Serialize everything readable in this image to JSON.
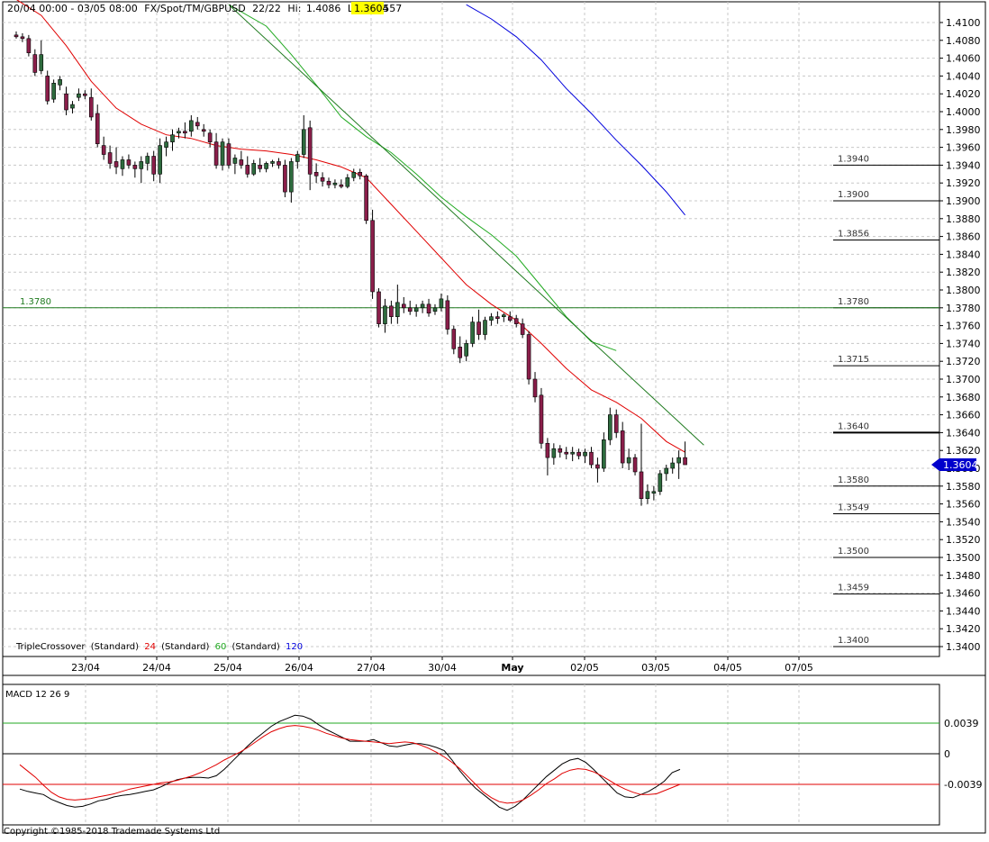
{
  "header": {
    "range": "20/04 00:00 - 03/05 08:00",
    "instrument": "FX/Spot/TM/GBPUSD",
    "bars": "22/22",
    "hi_label": "Hi:",
    "hi": "1.4086",
    "lo_label": "Lo:",
    "lo": "1.3557",
    "last": "1.3604"
  },
  "indicator_legend": {
    "name": "TripleCrossover",
    "p1_label": "(Standard)",
    "p1": "24",
    "p2_label": "(Standard)",
    "p2": "60",
    "p3_label": "(Standard)",
    "p3": "120"
  },
  "macd_panel": {
    "label": "MACD 12 26 9",
    "ticks": [
      "0.0039",
      "0",
      "-0.0039"
    ]
  },
  "copyright": "Copyright ©1985-2018 Trademade Systems Ltd",
  "colors": {
    "up": "#2e6b3e",
    "down": "#8a1e4a",
    "ma_fast": "#e00000",
    "ma_mid": "#22aa22",
    "ma_slow": "#0000dd",
    "trend": "#1e7a1e",
    "price_tag": "#0000cc",
    "hl_last": "#ffff00"
  },
  "chart_data": [
    {
      "type": "candlestick",
      "ylim": [
        1.339,
        1.411
      ],
      "y_ticks": [
        "1.4100",
        "1.4080",
        "1.4060",
        "1.4040",
        "1.4020",
        "1.4000",
        "1.3980",
        "1.3960",
        "1.3940",
        "1.3920",
        "1.3900",
        "1.3880",
        "1.3860",
        "1.3840",
        "1.3820",
        "1.3800",
        "1.3780",
        "1.3760",
        "1.3740",
        "1.3720",
        "1.3700",
        "1.3680",
        "1.3660",
        "1.3640",
        "1.3620",
        "1.3600",
        "1.3580",
        "1.3560",
        "1.3540",
        "1.3520",
        "1.3500",
        "1.3480",
        "1.3460",
        "1.3440",
        "1.3420",
        "1.3400"
      ],
      "x_labels": [
        "23/04",
        "24/04",
        "25/04",
        "26/04",
        "27/04",
        "30/04",
        "May",
        "02/05",
        "03/05",
        "04/05",
        "07/05"
      ],
      "grid": true,
      "candles": [
        [
          1.4086,
          1.409,
          1.4082,
          1.4084
        ],
        [
          1.4084,
          1.4088,
          1.4078,
          1.4082
        ],
        [
          1.4082,
          1.4086,
          1.4062,
          1.4066
        ],
        [
          1.4064,
          1.407,
          1.404,
          1.4044
        ],
        [
          1.4046,
          1.408,
          1.4042,
          1.4064
        ],
        [
          1.404,
          1.4046,
          1.4008,
          1.4012
        ],
        [
          1.4014,
          1.4036,
          1.401,
          1.4032
        ],
        [
          1.403,
          1.404,
          1.4024,
          1.4036
        ],
        [
          1.402,
          1.4028,
          1.3996,
          1.4002
        ],
        [
          1.4004,
          1.4012,
          1.3998,
          1.4008
        ],
        [
          1.4016,
          1.4026,
          1.4012,
          1.402
        ],
        [
          1.402,
          1.4024,
          1.4014,
          1.4018
        ],
        [
          1.4016,
          1.4026,
          1.399,
          1.3994
        ],
        [
          1.3998,
          1.4008,
          1.396,
          1.3964
        ],
        [
          1.3962,
          1.3972,
          1.3946,
          1.3952
        ],
        [
          1.3954,
          1.3962,
          1.3936,
          1.3942
        ],
        [
          1.3944,
          1.396,
          1.393,
          1.3938
        ],
        [
          1.3936,
          1.395,
          1.3928,
          1.3946
        ],
        [
          1.3946,
          1.3952,
          1.3936,
          1.394
        ],
        [
          1.394,
          1.3944,
          1.3926,
          1.3936
        ],
        [
          1.3936,
          1.395,
          1.392,
          1.3944
        ],
        [
          1.3942,
          1.3954,
          1.3934,
          1.395
        ],
        [
          1.395,
          1.3956,
          1.3922,
          1.393
        ],
        [
          1.393,
          1.397,
          1.392,
          1.3962
        ],
        [
          1.396,
          1.3972,
          1.395,
          1.3966
        ],
        [
          1.3966,
          1.398,
          1.3956,
          1.3974
        ],
        [
          1.3976,
          1.3982,
          1.397,
          1.3978
        ],
        [
          1.3978,
          1.3988,
          1.397,
          1.3976
        ],
        [
          1.3978,
          1.3996,
          1.3972,
          1.399
        ],
        [
          1.3988,
          1.3994,
          1.398,
          1.3984
        ],
        [
          1.398,
          1.3986,
          1.3972,
          1.3978
        ],
        [
          1.3976,
          1.398,
          1.396,
          1.3966
        ],
        [
          1.3966,
          1.3976,
          1.3936,
          1.394
        ],
        [
          1.394,
          1.397,
          1.3934,
          1.3966
        ],
        [
          1.3964,
          1.397,
          1.3936,
          1.394
        ],
        [
          1.3942,
          1.3952,
          1.393,
          1.3948
        ],
        [
          1.3946,
          1.3956,
          1.3936,
          1.394
        ],
        [
          1.394,
          1.395,
          1.3926,
          1.393
        ],
        [
          1.393,
          1.3946,
          1.3928,
          1.3942
        ],
        [
          1.394,
          1.3948,
          1.3932,
          1.3936
        ],
        [
          1.3936,
          1.3944,
          1.3932,
          1.3942
        ],
        [
          1.3942,
          1.3946,
          1.3938,
          1.3944
        ],
        [
          1.3944,
          1.3948,
          1.3936,
          1.394
        ],
        [
          1.394,
          1.3946,
          1.3904,
          1.391
        ],
        [
          1.391,
          1.3948,
          1.3898,
          1.3944
        ],
        [
          1.3944,
          1.3956,
          1.3936,
          1.3952
        ],
        [
          1.3952,
          1.3996,
          1.3948,
          1.398
        ],
        [
          1.3982,
          1.399,
          1.3912,
          1.393
        ],
        [
          1.3932,
          1.3942,
          1.392,
          1.3928
        ],
        [
          1.3926,
          1.3932,
          1.3916,
          1.3922
        ],
        [
          1.3922,
          1.3926,
          1.3914,
          1.3918
        ],
        [
          1.3918,
          1.3924,
          1.3914,
          1.392
        ],
        [
          1.3918,
          1.3924,
          1.3914,
          1.3916
        ],
        [
          1.3916,
          1.393,
          1.3914,
          1.3926
        ],
        [
          1.3926,
          1.3936,
          1.3922,
          1.3932
        ],
        [
          1.3932,
          1.3936,
          1.3924,
          1.3928
        ],
        [
          1.3928,
          1.393,
          1.3874,
          1.3878
        ],
        [
          1.3878,
          1.389,
          1.379,
          1.3798
        ],
        [
          1.3798,
          1.3802,
          1.3758,
          1.3762
        ],
        [
          1.3762,
          1.379,
          1.3752,
          1.3782
        ],
        [
          1.3782,
          1.3788,
          1.3762,
          1.377
        ],
        [
          1.377,
          1.3806,
          1.3762,
          1.3786
        ],
        [
          1.3784,
          1.3792,
          1.3774,
          1.378
        ],
        [
          1.378,
          1.3788,
          1.3772,
          1.3776
        ],
        [
          1.3776,
          1.3784,
          1.377,
          1.378
        ],
        [
          1.378,
          1.3788,
          1.3774,
          1.3784
        ],
        [
          1.3784,
          1.379,
          1.377,
          1.3774
        ],
        [
          1.3776,
          1.3784,
          1.3772,
          1.378
        ],
        [
          1.378,
          1.3796,
          1.3776,
          1.379
        ],
        [
          1.3788,
          1.3794,
          1.375,
          1.3756
        ],
        [
          1.3756,
          1.376,
          1.3728,
          1.3734
        ],
        [
          1.3736,
          1.3748,
          1.3718,
          1.3724
        ],
        [
          1.3726,
          1.3744,
          1.372,
          1.374
        ],
        [
          1.374,
          1.377,
          1.3736,
          1.3764
        ],
        [
          1.3764,
          1.3778,
          1.3744,
          1.375
        ],
        [
          1.375,
          1.377,
          1.3744,
          1.3766
        ],
        [
          1.3766,
          1.3774,
          1.376,
          1.377
        ],
        [
          1.377,
          1.3776,
          1.3762,
          1.3768
        ],
        [
          1.377,
          1.3774,
          1.3764,
          1.3772
        ],
        [
          1.377,
          1.3776,
          1.3764,
          1.3766
        ],
        [
          1.3768,
          1.3772,
          1.3758,
          1.3762
        ],
        [
          1.3762,
          1.3768,
          1.3746,
          1.375
        ],
        [
          1.375,
          1.3754,
          1.3694,
          1.37
        ],
        [
          1.37,
          1.3708,
          1.3674,
          1.368
        ],
        [
          1.3682,
          1.369,
          1.3622,
          1.3628
        ],
        [
          1.3628,
          1.3634,
          1.3592,
          1.3612
        ],
        [
          1.3612,
          1.3628,
          1.3604,
          1.3622
        ],
        [
          1.3622,
          1.3626,
          1.3612,
          1.3618
        ],
        [
          1.3618,
          1.3624,
          1.361,
          1.3616
        ],
        [
          1.3616,
          1.3624,
          1.3608,
          1.3618
        ],
        [
          1.3618,
          1.3622,
          1.361,
          1.3614
        ],
        [
          1.3614,
          1.3622,
          1.3606,
          1.3618
        ],
        [
          1.3618,
          1.3624,
          1.36,
          1.3604
        ],
        [
          1.3604,
          1.3612,
          1.3584,
          1.36
        ],
        [
          1.36,
          1.364,
          1.3596,
          1.3632
        ],
        [
          1.3632,
          1.3668,
          1.3626,
          1.366
        ],
        [
          1.366,
          1.3666,
          1.3634,
          1.364
        ],
        [
          1.3642,
          1.3652,
          1.36,
          1.3606
        ],
        [
          1.3606,
          1.3622,
          1.3598,
          1.3612
        ],
        [
          1.3612,
          1.3616,
          1.3592,
          1.3596
        ],
        [
          1.3596,
          1.365,
          1.3558,
          1.3566
        ],
        [
          1.3566,
          1.3582,
          1.356,
          1.3574
        ],
        [
          1.3572,
          1.358,
          1.3564,
          1.3574
        ],
        [
          1.3574,
          1.3598,
          1.357,
          1.3594
        ],
        [
          1.3594,
          1.3604,
          1.3586,
          1.36
        ],
        [
          1.36,
          1.3612,
          1.3594,
          1.3606
        ],
        [
          1.3606,
          1.362,
          1.3588,
          1.3612
        ],
        [
          1.3612,
          1.363,
          1.3604,
          1.3604
        ]
      ],
      "ma24": [
        [
          0,
          1.4126
        ],
        [
          4,
          1.4108
        ],
        [
          8,
          1.4074
        ],
        [
          12,
          1.4034
        ],
        [
          16,
          1.4004
        ],
        [
          20,
          1.3986
        ],
        [
          24,
          1.3974
        ],
        [
          28,
          1.397
        ],
        [
          32,
          1.3962
        ],
        [
          36,
          1.3958
        ],
        [
          40,
          1.3956
        ],
        [
          44,
          1.3952
        ],
        [
          48,
          1.3946
        ],
        [
          52,
          1.3938
        ],
        [
          56,
          1.3926
        ],
        [
          60,
          1.3896
        ],
        [
          64,
          1.3866
        ],
        [
          68,
          1.3836
        ],
        [
          72,
          1.3806
        ],
        [
          76,
          1.3784
        ],
        [
          80,
          1.3766
        ],
        [
          84,
          1.374
        ],
        [
          88,
          1.3712
        ],
        [
          92,
          1.3688
        ],
        [
          96,
          1.3674
        ],
        [
          100,
          1.3656
        ],
        [
          104,
          1.363
        ],
        [
          107,
          1.3618
        ]
      ],
      "ma60": [
        [
          34,
          1.412
        ],
        [
          40,
          1.4096
        ],
        [
          44,
          1.4064
        ],
        [
          48,
          1.403
        ],
        [
          52,
          1.3994
        ],
        [
          56,
          1.3972
        ],
        [
          60,
          1.3954
        ],
        [
          64,
          1.393
        ],
        [
          68,
          1.3904
        ],
        [
          72,
          1.3882
        ],
        [
          76,
          1.3862
        ],
        [
          80,
          1.3838
        ],
        [
          84,
          1.3804
        ],
        [
          88,
          1.377
        ],
        [
          92,
          1.3742
        ],
        [
          96,
          1.3732
        ]
      ],
      "ma120": [
        [
          72,
          1.412
        ],
        [
          76,
          1.4104
        ],
        [
          80,
          1.4084
        ],
        [
          84,
          1.4058
        ],
        [
          88,
          1.4026
        ],
        [
          92,
          1.3998
        ],
        [
          96,
          1.3968
        ],
        [
          100,
          1.394
        ],
        [
          104,
          1.391
        ],
        [
          107,
          1.3884
        ]
      ],
      "trendline": [
        [
          34,
          1.412
        ],
        [
          110,
          1.3626
        ]
      ],
      "levels": [
        "1.3940",
        "1.3900",
        "1.3856",
        "1.3780",
        "1.3715",
        "1.3640",
        "1.3580",
        "1.3549",
        "1.3500",
        "1.3459",
        "1.3400"
      ],
      "left_level_label": "1.3780",
      "last_price": "1.3604"
    },
    {
      "type": "line",
      "title": "MACD 12 26 9",
      "ylim": [
        -0.008,
        0.0056
      ],
      "series": [
        {
          "values": [
            -0.0045,
            -0.0048,
            -0.005,
            -0.0052,
            -0.0058,
            -0.0062,
            -0.0066,
            -0.0068,
            -0.0067,
            -0.0064,
            -0.006,
            -0.0058,
            -0.0055,
            -0.0053,
            -0.0052,
            -0.005,
            -0.0048,
            -0.0046,
            -0.0042,
            -0.0037,
            -0.0033,
            -0.0031,
            -0.003,
            -0.003,
            -0.0031,
            -0.0028,
            -0.002,
            -0.001,
            0.0,
            0.001,
            0.0019,
            0.0027,
            0.0035,
            0.0041,
            0.0045,
            0.0049,
            0.0048,
            0.0044,
            0.0037,
            0.0031,
            0.0026,
            0.0021,
            0.0016,
            0.0016,
            0.0016,
            0.0018,
            0.0014,
            0.001,
            0.0009,
            0.0011,
            0.0013,
            0.0013,
            0.0011,
            0.0008,
            0.0004,
            -0.0008,
            -0.0022,
            -0.0034,
            -0.0044,
            -0.0052,
            -0.006,
            -0.0068,
            -0.0072,
            -0.0067,
            -0.0059,
            -0.0049,
            -0.0039,
            -0.0029,
            -0.0021,
            -0.0013,
            -0.0008,
            -0.0006,
            -0.0011,
            -0.002,
            -0.003,
            -0.004,
            -0.005,
            -0.0055,
            -0.0056,
            -0.0052,
            -0.0048,
            -0.0042,
            -0.0035,
            -0.0024,
            -0.002
          ]
        },
        {
          "values": [
            -0.0014,
            -0.0022,
            -0.003,
            -0.004,
            -0.0049,
            -0.0055,
            -0.0058,
            -0.0059,
            -0.0058,
            -0.0057,
            -0.0055,
            -0.0053,
            -0.0051,
            -0.0048,
            -0.0045,
            -0.0043,
            -0.0041,
            -0.0039,
            -0.0037,
            -0.0036,
            -0.0034,
            -0.0031,
            -0.0028,
            -0.0024,
            -0.0019,
            -0.0014,
            -0.0008,
            -0.0003,
            0.0002,
            0.0008,
            0.0015,
            0.0022,
            0.0028,
            0.0032,
            0.0035,
            0.0036,
            0.0035,
            0.0033,
            0.003,
            0.0026,
            0.0023,
            0.002,
            0.0018,
            0.0017,
            0.0016,
            0.0015,
            0.0014,
            0.0013,
            0.0014,
            0.0015,
            0.0014,
            0.0011,
            0.0007,
            0.0002,
            -0.0004,
            -0.0011,
            -0.0019,
            -0.0029,
            -0.0039,
            -0.0049,
            -0.0056,
            -0.0061,
            -0.0063,
            -0.0062,
            -0.0059,
            -0.0053,
            -0.0046,
            -0.0038,
            -0.0032,
            -0.0025,
            -0.0021,
            -0.0019,
            -0.002,
            -0.0023,
            -0.0028,
            -0.0034,
            -0.004,
            -0.0045,
            -0.0049,
            -0.0052,
            -0.0052,
            -0.0051,
            -0.0047,
            -0.0043,
            -0.0039
          ]
        }
      ],
      "hlines": [
        0.0039,
        0,
        -0.0039
      ]
    }
  ]
}
